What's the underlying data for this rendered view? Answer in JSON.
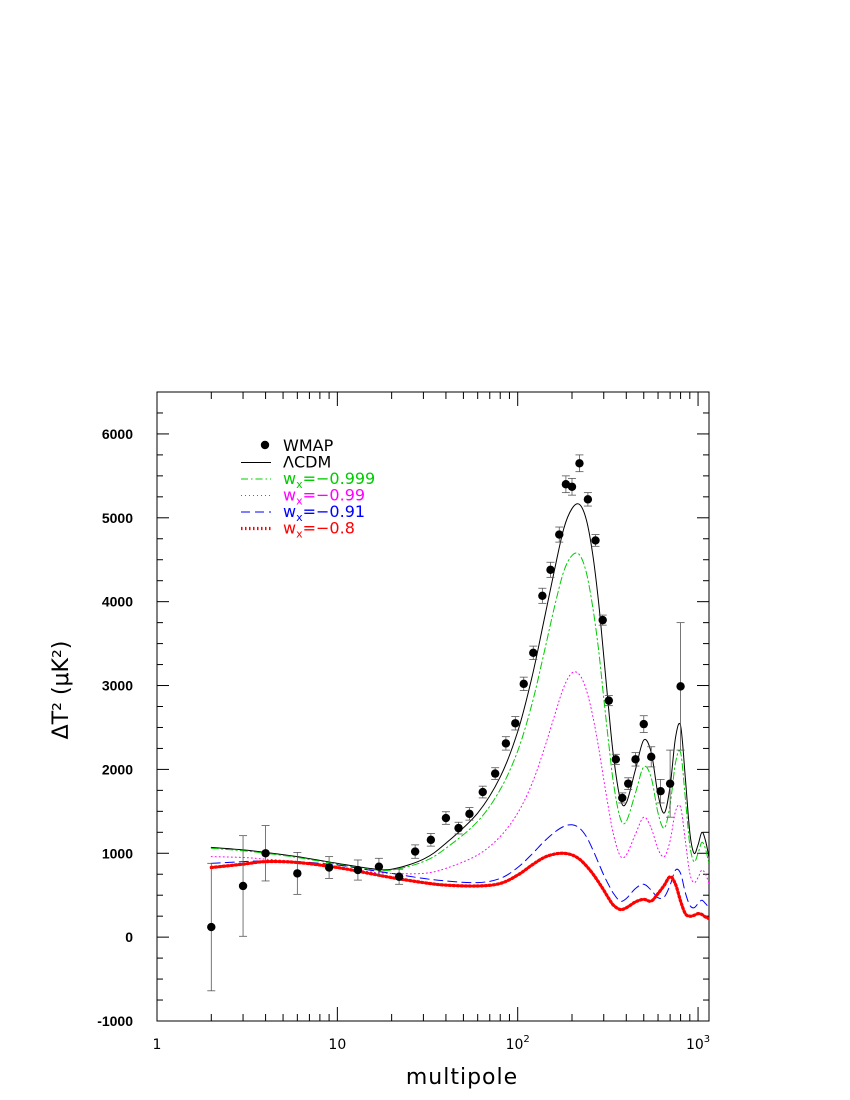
{
  "chart_data": {
    "type": "scatter",
    "xscale": "log",
    "xlim": [
      1,
      1150
    ],
    "ylim": [
      -1000,
      6500
    ],
    "xlabel": "multipole",
    "ylabel": "ΔT² (μK²)",
    "yticks": [
      -1000,
      0,
      1000,
      2000,
      3000,
      4000,
      5000,
      6000
    ],
    "xticks": [
      {
        "value": 1,
        "label": "1"
      },
      {
        "value": 10,
        "label": "10"
      },
      {
        "value": 100,
        "label": "10",
        "exp": "2"
      },
      {
        "value": 1000,
        "label": "10",
        "exp": "3"
      }
    ],
    "legend_position": "top-left",
    "data_series": {
      "name": "WMAP",
      "color": "#000000",
      "points": [
        {
          "x": 2,
          "y": 120,
          "err": 760
        },
        {
          "x": 3,
          "y": 610,
          "err": 600
        },
        {
          "x": 4,
          "y": 1000,
          "err": 330
        },
        {
          "x": 6,
          "y": 760,
          "err": 250
        },
        {
          "x": 9,
          "y": 830,
          "err": 130
        },
        {
          "x": 13,
          "y": 800,
          "err": 120
        },
        {
          "x": 17,
          "y": 840,
          "err": 100
        },
        {
          "x": 22,
          "y": 720,
          "err": 90
        },
        {
          "x": 27,
          "y": 1020,
          "err": 80
        },
        {
          "x": 33,
          "y": 1160,
          "err": 75
        },
        {
          "x": 40,
          "y": 1420,
          "err": 75
        },
        {
          "x": 47,
          "y": 1300,
          "err": 70
        },
        {
          "x": 54,
          "y": 1470,
          "err": 75
        },
        {
          "x": 64,
          "y": 1730,
          "err": 70
        },
        {
          "x": 75,
          "y": 1950,
          "err": 70
        },
        {
          "x": 86,
          "y": 2310,
          "err": 80
        },
        {
          "x": 97,
          "y": 2550,
          "err": 80
        },
        {
          "x": 108,
          "y": 3020,
          "err": 80
        },
        {
          "x": 122,
          "y": 3390,
          "err": 80
        },
        {
          "x": 137,
          "y": 4070,
          "err": 90
        },
        {
          "x": 152,
          "y": 4380,
          "err": 90
        },
        {
          "x": 170,
          "y": 4800,
          "err": 90
        },
        {
          "x": 185,
          "y": 5400,
          "err": 100
        },
        {
          "x": 200,
          "y": 5370,
          "err": 100
        },
        {
          "x": 220,
          "y": 5650,
          "err": 100
        },
        {
          "x": 245,
          "y": 5220,
          "err": 80
        },
        {
          "x": 270,
          "y": 4730,
          "err": 70
        },
        {
          "x": 296,
          "y": 3780,
          "err": 60
        },
        {
          "x": 320,
          "y": 2820,
          "err": 60
        },
        {
          "x": 350,
          "y": 2120,
          "err": 60
        },
        {
          "x": 380,
          "y": 1660,
          "err": 60
        },
        {
          "x": 410,
          "y": 1830,
          "err": 70
        },
        {
          "x": 450,
          "y": 2120,
          "err": 80
        },
        {
          "x": 500,
          "y": 2540,
          "err": 100
        },
        {
          "x": 550,
          "y": 2150,
          "err": 120
        },
        {
          "x": 620,
          "y": 1740,
          "err": 140
        },
        {
          "x": 700,
          "y": 1830,
          "err": 400
        },
        {
          "x": 800,
          "y": 2990,
          "err": 760
        }
      ]
    },
    "series": [
      {
        "name": "ΛCDM",
        "color": "#000000",
        "style": "solid",
        "x": [
          2,
          3,
          4,
          6,
          10,
          15,
          20,
          30,
          40,
          60,
          80,
          100,
          120,
          140,
          160,
          180,
          200,
          220,
          240,
          260,
          280,
          300,
          320,
          340,
          370,
          400,
          450,
          500,
          550,
          600,
          650,
          700,
          750,
          800,
          850,
          900,
          950,
          1000,
          1050,
          1100,
          1150
        ],
        "y": [
          1070,
          1040,
          1010,
          960,
          880,
          820,
          810,
          930,
          1120,
          1480,
          1910,
          2450,
          3100,
          3780,
          4380,
          4870,
          5110,
          5160,
          4980,
          4580,
          4020,
          3350,
          2700,
          2150,
          1650,
          1600,
          2000,
          2350,
          2200,
          1700,
          1480,
          1800,
          2380,
          2520,
          1900,
          1250,
          1000,
          1100,
          1250,
          1150,
          950
        ]
      },
      {
        "name": "w_x=-0.999",
        "label_main": "w",
        "label_sub": "x",
        "label_rest": "=−0.999",
        "color": "#00cc00",
        "style": "dashdot",
        "x": [
          2,
          3,
          4,
          6,
          10,
          15,
          20,
          30,
          40,
          60,
          80,
          100,
          120,
          140,
          160,
          180,
          200,
          220,
          240,
          260,
          280,
          300,
          320,
          340,
          370,
          400,
          450,
          500,
          550,
          600,
          650,
          700,
          750,
          800,
          850,
          900,
          950,
          1000,
          1050,
          1100,
          1150
        ],
        "y": [
          1060,
          1030,
          1000,
          950,
          870,
          810,
          800,
          900,
          1060,
          1380,
          1760,
          2220,
          2780,
          3390,
          3940,
          4360,
          4550,
          4560,
          4350,
          3950,
          3450,
          2850,
          2300,
          1830,
          1420,
          1380,
          1720,
          2030,
          1900,
          1480,
          1300,
          1580,
          2080,
          2200,
          1660,
          1100,
          900,
          1000,
          1130,
          1050,
          870
        ]
      },
      {
        "name": "w_x=-0.99",
        "label_main": "w",
        "label_sub": "x",
        "label_rest": "=−0.99",
        "color": "#ff00ff",
        "style": "dotted",
        "x": [
          2,
          3,
          4,
          6,
          10,
          15,
          20,
          30,
          40,
          60,
          80,
          100,
          120,
          140,
          160,
          180,
          200,
          220,
          240,
          260,
          280,
          300,
          320,
          340,
          370,
          400,
          450,
          500,
          550,
          600,
          650,
          700,
          750,
          800,
          850,
          900,
          950,
          1000,
          1050,
          1100,
          1150
        ],
        "y": [
          960,
          950,
          930,
          900,
          840,
          780,
          760,
          760,
          820,
          980,
          1200,
          1480,
          1830,
          2240,
          2640,
          2980,
          3150,
          3130,
          2950,
          2650,
          2280,
          1880,
          1520,
          1220,
          970,
          980,
          1230,
          1430,
          1300,
          1050,
          960,
          1150,
          1500,
          1550,
          1150,
          760,
          650,
          710,
          800,
          750,
          640
        ]
      },
      {
        "name": "w_x=-0.91",
        "label_main": "w",
        "label_sub": "x",
        "label_rest": "=−0.91",
        "color": "#0000ff",
        "style": "dashed",
        "x": [
          2,
          3,
          4,
          6,
          10,
          15,
          20,
          30,
          40,
          60,
          80,
          100,
          120,
          140,
          160,
          180,
          200,
          220,
          240,
          260,
          280,
          300,
          320,
          340,
          370,
          400,
          450,
          500,
          550,
          600,
          650,
          700,
          750,
          800,
          850,
          900,
          950,
          1000,
          1050,
          1100,
          1150
        ],
        "y": [
          880,
          900,
          910,
          900,
          860,
          800,
          760,
          700,
          670,
          650,
          700,
          830,
          990,
          1140,
          1250,
          1320,
          1340,
          1300,
          1200,
          1050,
          890,
          740,
          620,
          520,
          430,
          460,
          580,
          630,
          560,
          470,
          480,
          620,
          800,
          760,
          530,
          380,
          350,
          400,
          440,
          400,
          350
        ]
      },
      {
        "name": "w_x=-0.8",
        "label_main": "w",
        "label_sub": "x",
        "label_rest": "=−0.8",
        "color": "#ff0000",
        "style": "dotted-thick",
        "x": [
          2,
          3,
          4,
          6,
          10,
          15,
          20,
          30,
          40,
          60,
          80,
          100,
          120,
          140,
          160,
          180,
          200,
          220,
          240,
          260,
          280,
          300,
          320,
          340,
          370,
          400,
          450,
          500,
          550,
          600,
          650,
          700,
          750,
          800,
          850,
          900,
          950,
          1000,
          1050,
          1100,
          1150
        ],
        "y": [
          830,
          870,
          900,
          890,
          830,
          760,
          710,
          650,
          620,
          610,
          640,
          740,
          860,
          950,
          990,
          1000,
          980,
          930,
          850,
          760,
          660,
          560,
          460,
          380,
          330,
          350,
          420,
          450,
          430,
          520,
          620,
          720,
          630,
          430,
          280,
          250,
          260,
          280,
          270,
          240,
          220
        ]
      }
    ]
  }
}
